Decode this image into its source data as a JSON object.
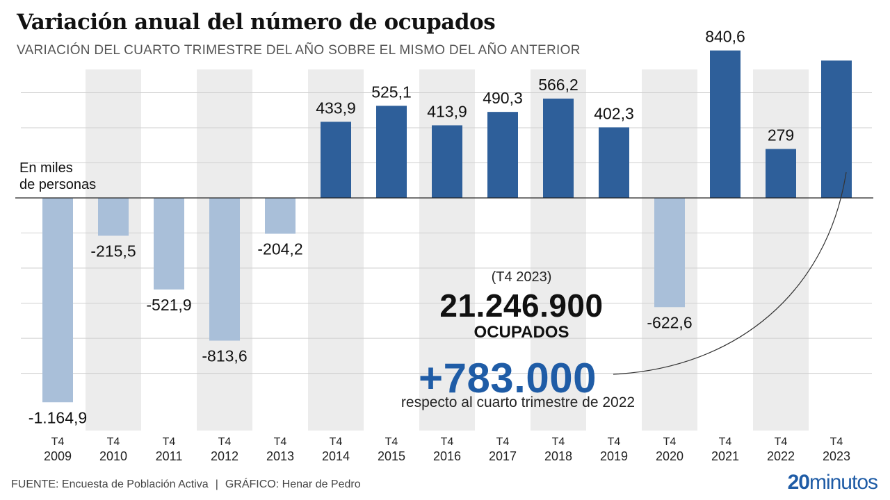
{
  "header": {
    "title": "Variación anual del número de ocupados",
    "subtitle": "VARIACIÓN DEL CUARTO TRIMESTRE DEL AÑO SOBRE EL MISMO DEL AÑO ANTERIOR"
  },
  "unit_note": {
    "line1": "En miles",
    "line2": "de personas"
  },
  "callout": {
    "period": "(T4 2023)",
    "total": "21.246.900",
    "total_label": "OCUPADOS",
    "change": "+783.000",
    "change_note": "respecto al cuarto trimestre de 2022"
  },
  "footer": {
    "source": "FUENTE: Encuesta de Población Activa",
    "separator": "|",
    "credit": "GRÁFICO: Henar de Pedro"
  },
  "logo": {
    "bold": "20",
    "light": "minutos"
  },
  "colors": {
    "positive": "#2e5f9a",
    "negative": "#a9bfd9",
    "band": "#ececec",
    "accent": "#1f5ca6"
  },
  "chart_data": {
    "type": "bar",
    "categories": [
      [
        "T4",
        "2009"
      ],
      [
        "T4",
        "2010"
      ],
      [
        "T4",
        "2011"
      ],
      [
        "T4",
        "2012"
      ],
      [
        "T4",
        "2013"
      ],
      [
        "T4",
        "2014"
      ],
      [
        "T4",
        "2015"
      ],
      [
        "T4",
        "2016"
      ],
      [
        "T4",
        "2017"
      ],
      [
        "T4",
        "2018"
      ],
      [
        "T4",
        "2019"
      ],
      [
        "T4",
        "2020"
      ],
      [
        "T4",
        "2021"
      ],
      [
        "T4",
        "2022"
      ],
      [
        "T4",
        "2023"
      ]
    ],
    "values": [
      -1164.9,
      -215.5,
      -521.9,
      -813.6,
      -204.2,
      433.9,
      525.1,
      413.9,
      490.3,
      566.2,
      402.3,
      -622.6,
      840.6,
      279,
      783
    ],
    "labels": [
      "-1.164,9",
      "-215,5",
      "-521,9",
      "-813,6",
      "-204,2",
      "433,9",
      "525,1",
      "413,9",
      "490,3",
      "566,2",
      "402,3",
      "-622,6",
      "840,6",
      "279",
      ""
    ],
    "ylim": [
      -1300,
      1000
    ],
    "grid": true
  }
}
